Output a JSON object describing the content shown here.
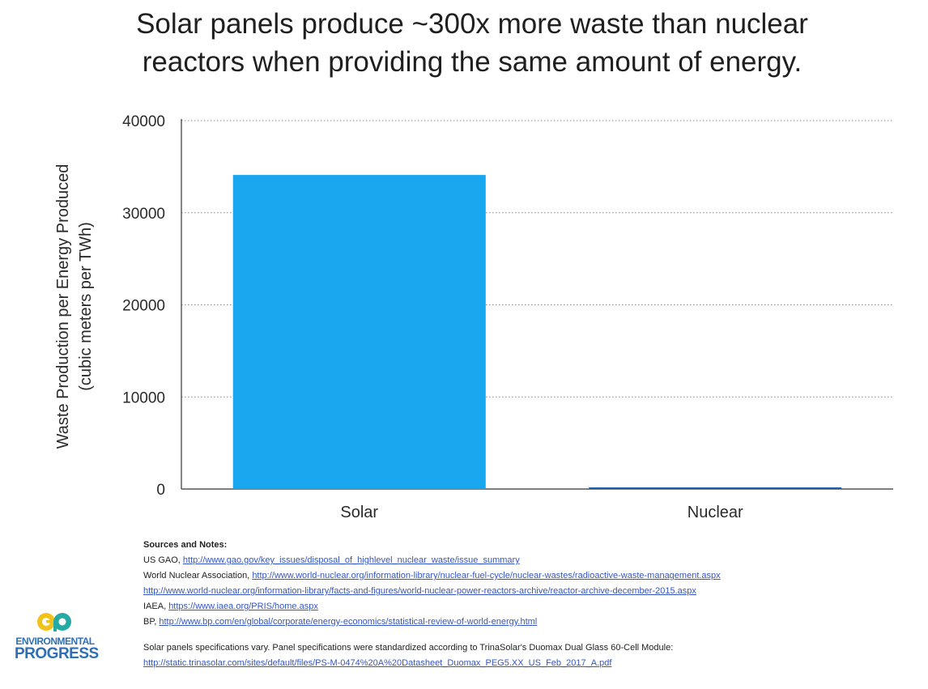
{
  "title": {
    "line1": "Solar panels produce ~300x more waste than nuclear",
    "line2": "reactors when providing the same amount of energy."
  },
  "chart_data": {
    "type": "bar",
    "categories": [
      "Solar",
      "Nuclear"
    ],
    "values": [
      34100,
      120
    ],
    "ylabel": "Waste Production per Energy Produced",
    "ylabel_sub": "(cubic meters per TWh)",
    "xlabel": "",
    "ylim": [
      0,
      40000
    ],
    "yticks": [
      0,
      10000,
      20000,
      30000,
      40000
    ],
    "grid": true,
    "colors": {
      "Solar": "#18a7ef",
      "Nuclear": "#1d5fa8"
    }
  },
  "sources": {
    "header": "Sources and Notes:",
    "lines": [
      {
        "prefix": "US GAO, ",
        "link": "http://www.gao.gov/key_issues/disposal_of_highlevel_nuclear_waste/issue_summary"
      },
      {
        "prefix": "World Nuclear Association, ",
        "link": "http://www.world-nuclear.org/information-library/nuclear-fuel-cycle/nuclear-wastes/radioactive-waste-management.aspx"
      },
      {
        "prefix": "",
        "link": "http://www.world-nuclear.org/information-library/facts-and-figures/world-nuclear-power-reactors-archive/reactor-archive-december-2015.aspx"
      },
      {
        "prefix": "IAEA, ",
        "link": "https://www.iaea.org/PRIS/home.aspx"
      },
      {
        "prefix": "BP, ",
        "link": "http://www.bp.com/en/global/corporate/energy-economics/statistical-review-of-world-energy.html"
      }
    ],
    "note": "Solar panels specifications vary. Panel specifications were standardized according to TrinaSolar's Duomax Dual Glass 60-Cell Module:",
    "note_link": "http://static.trinasolar.com/sites/default/files/PS-M-0474%20A%20Datasheet_Duomax_PEG5.XX_US_Feb_2017_A.pdf"
  },
  "logo": {
    "line1": "ENVIRONMENTAL",
    "line2": "PROGRESS",
    "mark": "ep",
    "colors": {
      "yellow": "#f3c21a",
      "teal": "#27a9a3",
      "blue": "#2e6fb5"
    }
  }
}
